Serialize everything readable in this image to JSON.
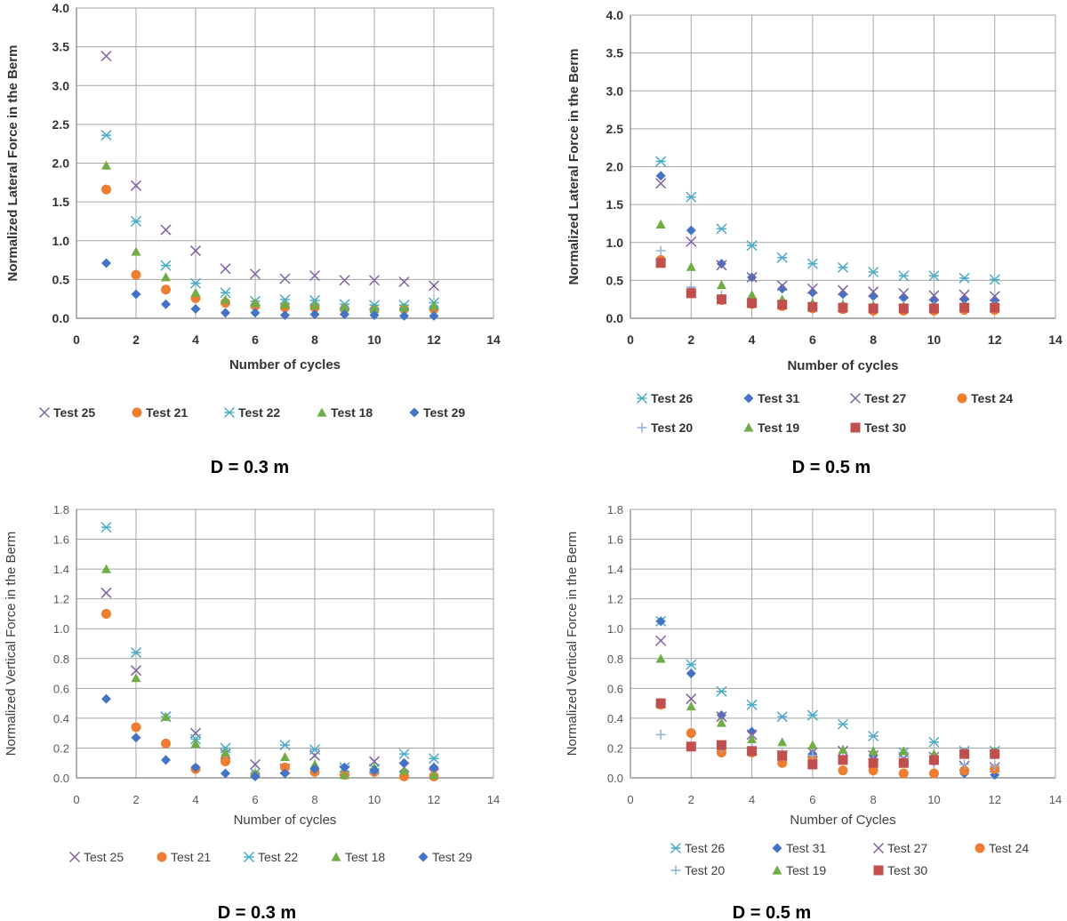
{
  "colors": {
    "purple": "#7f63a1",
    "orange": "#ed7d31",
    "teal": "#4bacc6",
    "green": "#70ad47",
    "blue": "#4472c4",
    "red": "#c0504d",
    "lightblue": "#8fb1dd",
    "grid": "#a6a6a6",
    "axis": "#808080"
  },
  "chart_data": [
    {
      "type": "scatter",
      "caption": "D = 0.3 m",
      "xlabel": "Number of cycles",
      "ylabel": "Normalized Lateral Force in the Berm",
      "xlim": [
        0,
        14
      ],
      "xticks": [
        0,
        2,
        4,
        6,
        8,
        10,
        12,
        14
      ],
      "ylim": [
        0,
        4
      ],
      "yticks": [
        "0.0",
        "0.5",
        "1.0",
        "1.5",
        "2.0",
        "2.5",
        "3.0",
        "3.5",
        "4.0"
      ],
      "legend_position": "bottom",
      "series": [
        {
          "name": "Test 25",
          "marker": "x",
          "color": "purple",
          "x": [
            1,
            2,
            3,
            4,
            5,
            6,
            7,
            8,
            9,
            10,
            11,
            12
          ],
          "y": [
            3.38,
            1.71,
            1.14,
            0.87,
            0.64,
            0.57,
            0.51,
            0.55,
            0.49,
            0.49,
            0.47,
            0.42
          ]
        },
        {
          "name": "Test 21",
          "marker": "circle",
          "color": "orange",
          "x": [
            1,
            2,
            3,
            4,
            5,
            6,
            7,
            8,
            9,
            10,
            11,
            12
          ],
          "y": [
            1.66,
            0.56,
            0.37,
            0.26,
            0.2,
            0.16,
            0.14,
            0.14,
            0.12,
            0.11,
            0.12,
            0.12
          ]
        },
        {
          "name": "Test 22",
          "marker": "asterisk",
          "color": "teal",
          "x": [
            1,
            2,
            3,
            4,
            5,
            6,
            7,
            8,
            9,
            10,
            11,
            12
          ],
          "y": [
            2.36,
            1.25,
            0.68,
            0.45,
            0.33,
            0.22,
            0.24,
            0.23,
            0.18,
            0.17,
            0.17,
            0.2
          ]
        },
        {
          "name": "Test 18",
          "marker": "triangle",
          "color": "green",
          "x": [
            1,
            2,
            3,
            4,
            5,
            6,
            7,
            8,
            9,
            10,
            11,
            12
          ],
          "y": [
            1.97,
            0.86,
            0.53,
            0.33,
            0.24,
            0.2,
            0.18,
            0.17,
            0.14,
            0.12,
            0.14,
            0.16
          ]
        },
        {
          "name": "Test 29",
          "marker": "diamond",
          "color": "blue",
          "x": [
            1,
            2,
            3,
            4,
            5,
            6,
            7,
            8,
            9,
            10,
            11,
            12
          ],
          "y": [
            0.71,
            0.31,
            0.18,
            0.12,
            0.07,
            0.07,
            0.04,
            0.05,
            0.05,
            0.04,
            0.03,
            0.03
          ]
        }
      ]
    },
    {
      "type": "scatter",
      "caption": "D = 0.5 m",
      "xlabel": "Number of cycles",
      "ylabel": "Normalized Lateral Force in the Berm",
      "xlim": [
        0,
        14
      ],
      "xticks": [
        0,
        2,
        4,
        6,
        8,
        10,
        12,
        14
      ],
      "ylim": [
        0,
        4
      ],
      "yticks": [
        "0.0",
        "0.5",
        "1.0",
        "1.5",
        "2.0",
        "2.5",
        "3.0",
        "3.5",
        "4.0"
      ],
      "legend_position": "bottom",
      "series": [
        {
          "name": "Test 26",
          "marker": "asterisk",
          "color": "teal",
          "x": [
            1,
            2,
            3,
            4,
            5,
            6,
            7,
            8,
            9,
            10,
            11,
            12
          ],
          "y": [
            2.07,
            1.6,
            1.18,
            0.96,
            0.8,
            0.72,
            0.67,
            0.61,
            0.56,
            0.56,
            0.53,
            0.51
          ]
        },
        {
          "name": "Test 31",
          "marker": "diamond",
          "color": "blue",
          "x": [
            1,
            2,
            3,
            4,
            5,
            6,
            7,
            8,
            9,
            10,
            11,
            12
          ],
          "y": [
            1.88,
            1.16,
            0.72,
            0.54,
            0.39,
            0.34,
            0.32,
            0.29,
            0.27,
            0.24,
            0.25,
            0.24
          ]
        },
        {
          "name": "Test 27",
          "marker": "x",
          "color": "purple",
          "x": [
            1,
            2,
            3,
            4,
            5,
            6,
            7,
            8,
            9,
            10,
            11,
            12
          ],
          "y": [
            1.78,
            1.01,
            0.7,
            0.54,
            0.43,
            0.39,
            0.37,
            0.35,
            0.33,
            0.3,
            0.31,
            0.29
          ]
        },
        {
          "name": "Test 24",
          "marker": "circle",
          "color": "orange",
          "x": [
            1,
            2,
            3,
            4,
            5,
            6,
            7,
            8,
            9,
            10,
            11,
            12
          ],
          "y": [
            0.77,
            0.35,
            0.24,
            0.19,
            0.16,
            0.13,
            0.12,
            0.1,
            0.1,
            0.1,
            0.11,
            0.11
          ]
        },
        {
          "name": "Test 20",
          "marker": "plus",
          "color": "lightblue",
          "x": [
            1,
            2,
            3,
            4,
            5,
            6,
            7,
            8,
            9,
            10,
            11,
            12
          ],
          "y": [
            0.89,
            0.41,
            0.3,
            0.26,
            0.22,
            0.2,
            0.19,
            0.18,
            0.17,
            0.16,
            0.16,
            0.16
          ]
        },
        {
          "name": "Test 19",
          "marker": "triangle",
          "color": "green",
          "x": [
            1,
            2,
            3,
            4,
            5,
            6,
            7,
            8,
            9,
            10,
            11,
            12
          ],
          "y": [
            1.24,
            0.68,
            0.44,
            0.31,
            0.25,
            0.2,
            0.18,
            0.17,
            0.16,
            0.15,
            0.15,
            0.14
          ]
        },
        {
          "name": "Test 30",
          "marker": "square",
          "color": "red",
          "x": [
            1,
            2,
            3,
            4,
            5,
            6,
            7,
            8,
            9,
            10,
            11,
            12
          ],
          "y": [
            0.73,
            0.33,
            0.25,
            0.2,
            0.18,
            0.15,
            0.14,
            0.13,
            0.13,
            0.13,
            0.14,
            0.14
          ]
        }
      ]
    },
    {
      "type": "scatter",
      "caption": "D = 0.3 m",
      "xlabel": "Number of cycles",
      "ylabel": "Normalized Vertical Force in the Berm",
      "xlim": [
        0,
        14
      ],
      "xticks": [
        0,
        2,
        4,
        6,
        8,
        10,
        12,
        14
      ],
      "ylim": [
        0,
        1.8
      ],
      "yticks": [
        "0.0",
        "0.2",
        "0.4",
        "0.6",
        "0.8",
        "1.0",
        "1.2",
        "1.4",
        "1.6",
        "1.8"
      ],
      "legend_position": "bottom",
      "series": [
        {
          "name": "Test 25",
          "marker": "x",
          "color": "purple",
          "x": [
            1,
            2,
            3,
            4,
            5,
            6,
            7,
            8,
            9,
            10,
            11,
            12
          ],
          "y": [
            1.24,
            0.72,
            0.41,
            0.3,
            0.16,
            0.09,
            0.06,
            0.15,
            0.05,
            0.11,
            0.07,
            0.03
          ]
        },
        {
          "name": "Test 21",
          "marker": "circle",
          "color": "orange",
          "x": [
            1,
            2,
            3,
            4,
            5,
            6,
            7,
            8,
            9,
            10,
            11,
            12
          ],
          "y": [
            1.1,
            0.34,
            0.23,
            0.06,
            0.11,
            0.02,
            0.07,
            0.04,
            0.02,
            0.04,
            0.01,
            0.01
          ]
        },
        {
          "name": "Test 22",
          "marker": "asterisk",
          "color": "teal",
          "x": [
            1,
            2,
            3,
            4,
            5,
            6,
            7,
            8,
            9,
            10,
            11,
            12
          ],
          "y": [
            1.68,
            0.84,
            0.41,
            0.26,
            0.2,
            0.03,
            0.22,
            0.19,
            0.07,
            0.06,
            0.16,
            0.13
          ]
        },
        {
          "name": "Test 18",
          "marker": "triangle",
          "color": "green",
          "x": [
            1,
            2,
            3,
            4,
            5,
            6,
            7,
            8,
            9,
            10,
            11,
            12
          ],
          "y": [
            1.4,
            0.67,
            0.41,
            0.23,
            0.17,
            0.03,
            0.14,
            0.09,
            0.02,
            0.07,
            0.05,
            0.02
          ]
        },
        {
          "name": "Test 29",
          "marker": "diamond",
          "color": "blue",
          "x": [
            1,
            2,
            3,
            4,
            5,
            6,
            7,
            8,
            9,
            10,
            11,
            12
          ],
          "y": [
            0.53,
            0.27,
            0.12,
            0.07,
            0.03,
            0.01,
            0.03,
            0.06,
            0.07,
            0.05,
            0.1,
            0.07
          ]
        }
      ]
    },
    {
      "type": "scatter",
      "caption": "D = 0.5 m",
      "xlabel": "Number of Cycles",
      "ylabel": "Normalized Vertical Force in the Berm",
      "xlim": [
        0,
        14
      ],
      "xticks": [
        0,
        2,
        4,
        6,
        8,
        10,
        12,
        14
      ],
      "ylim": [
        0,
        1.8
      ],
      "yticks": [
        "0.0",
        "0.2",
        "0.4",
        "0.6",
        "0.8",
        "1.0",
        "1.2",
        "1.4",
        "1.6",
        "1.8"
      ],
      "legend_position": "bottom",
      "series": [
        {
          "name": "Test 26",
          "marker": "asterisk",
          "color": "teal",
          "x": [
            1,
            2,
            3,
            4,
            5,
            6,
            7,
            8,
            9,
            10,
            11,
            12
          ],
          "y": [
            1.05,
            0.76,
            0.58,
            0.49,
            0.41,
            0.42,
            0.36,
            0.28,
            0.17,
            0.24,
            0.18,
            0.18
          ]
        },
        {
          "name": "Test 31",
          "marker": "diamond",
          "color": "blue",
          "x": [
            1,
            2,
            3,
            4,
            5,
            6,
            7,
            8,
            9,
            10,
            11,
            12
          ],
          "y": [
            1.05,
            0.7,
            0.42,
            0.31,
            0.15,
            0.16,
            0.12,
            0.15,
            0.1,
            0.11,
            0.03,
            0.02
          ]
        },
        {
          "name": "Test 27",
          "marker": "x",
          "color": "purple",
          "x": [
            1,
            2,
            3,
            4,
            5,
            6,
            7,
            8,
            9,
            10,
            11,
            12
          ],
          "y": [
            0.92,
            0.53,
            0.41,
            0.29,
            0.15,
            0.17,
            0.18,
            0.15,
            0.13,
            0.14,
            0.08,
            0.07
          ]
        },
        {
          "name": "Test 24",
          "marker": "circle",
          "color": "orange",
          "x": [
            1,
            2,
            3,
            4,
            5,
            6,
            7,
            8,
            9,
            10,
            11,
            12
          ],
          "y": [
            0.49,
            0.3,
            0.17,
            0.17,
            0.1,
            0.12,
            0.05,
            0.05,
            0.03,
            0.03,
            0.05,
            0.06
          ]
        },
        {
          "name": "Test 20",
          "marker": "plus",
          "color": "lightblue",
          "x": [
            1,
            2,
            3,
            4,
            5,
            6,
            7,
            8,
            9,
            10,
            11,
            12
          ],
          "y": [
            0.29,
            0.21,
            0.2,
            0.2,
            0.17,
            0.15,
            0.13,
            0.12,
            0.11,
            0.1,
            0.09,
            0.08
          ]
        },
        {
          "name": "Test 19",
          "marker": "triangle",
          "color": "green",
          "x": [
            1,
            2,
            3,
            4,
            5,
            6,
            7,
            8,
            9,
            10,
            11,
            12
          ],
          "y": [
            0.8,
            0.48,
            0.37,
            0.26,
            0.24,
            0.22,
            0.19,
            0.18,
            0.18,
            0.16,
            0.17,
            0.18
          ]
        },
        {
          "name": "Test 30",
          "marker": "square",
          "color": "red",
          "x": [
            1,
            2,
            3,
            4,
            5,
            6,
            7,
            8,
            9,
            10,
            11,
            12
          ],
          "y": [
            0.5,
            0.21,
            0.22,
            0.18,
            0.15,
            0.09,
            0.12,
            0.1,
            0.1,
            0.12,
            0.16,
            0.16
          ]
        }
      ]
    }
  ]
}
